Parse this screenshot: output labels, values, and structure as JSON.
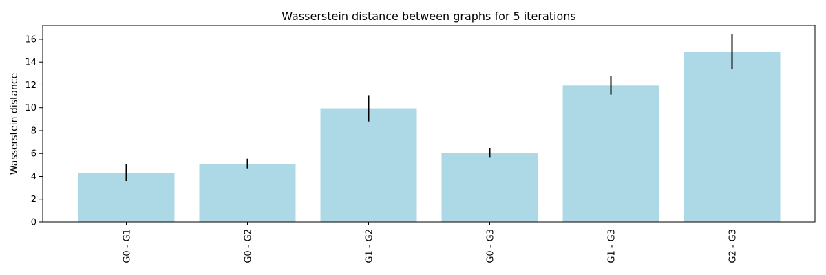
{
  "chart_data": {
    "type": "bar",
    "title": "Wasserstein distance between graphs for 5 iterations",
    "xlabel": "",
    "ylabel": "Wasserstein distance",
    "categories": [
      "G0 - G1",
      "G0 - G2",
      "G1 - G2",
      "G0 - G3",
      "G1 - G3",
      "G2 - G3"
    ],
    "values": [
      4.3,
      5.1,
      9.95,
      6.05,
      11.95,
      14.9
    ],
    "errors": [
      0.75,
      0.45,
      1.15,
      0.42,
      0.8,
      1.55
    ],
    "ylim": [
      0,
      17.2
    ],
    "yticks": [
      0,
      2,
      4,
      6,
      8,
      10,
      12,
      14,
      16
    ],
    "bar_color": "#add8e6",
    "error_color": "#000000",
    "grid": false
  }
}
